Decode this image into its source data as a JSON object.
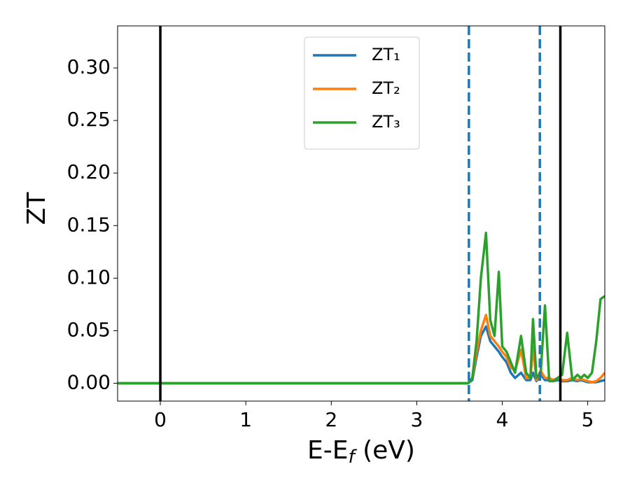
{
  "chart_data": {
    "type": "line",
    "xlabel": [
      "E-E",
      "f",
      " (eV)"
    ],
    "ylabel": "ZT",
    "xlim": [
      -0.5,
      5.2
    ],
    "ylim": [
      -0.017,
      0.34
    ],
    "xticks": [
      0,
      1,
      2,
      3,
      4,
      5
    ],
    "yticks": [
      {
        "value": 0,
        "label": "0.00"
      },
      {
        "value": 0.05,
        "label": "0.05"
      },
      {
        "value": 0.1,
        "label": "0.10"
      },
      {
        "value": 0.15,
        "label": "0.15"
      },
      {
        "value": 0.2,
        "label": "0.20"
      },
      {
        "value": 0.25,
        "label": "0.25"
      },
      {
        "value": 0.3,
        "label": "0.30"
      }
    ],
    "legend_position": "upper center",
    "x": [
      -0.5,
      3.6,
      3.65,
      3.7,
      3.75,
      3.81,
      3.86,
      3.91,
      3.96,
      4.0,
      4.05,
      4.1,
      4.15,
      4.22,
      4.28,
      4.33,
      4.36,
      4.4,
      4.45,
      4.5,
      4.55,
      4.6,
      4.65,
      4.7,
      4.76,
      4.82,
      4.88,
      4.92,
      4.96,
      5.0,
      5.05,
      5.1,
      5.15,
      5.2
    ],
    "series": [
      {
        "name": "ZT₁",
        "color": "#1f77b4",
        "values": [
          0,
          0,
          0.003,
          0.025,
          0.045,
          0.054,
          0.04,
          0.035,
          0.03,
          0.025,
          0.02,
          0.01,
          0.005,
          0.01,
          0.003,
          0.003,
          0.01,
          0.002,
          0.008,
          0.003,
          0.003,
          0.002,
          0.003,
          0.002,
          0.002,
          0.003,
          0.002,
          0.003,
          0.002,
          0.001,
          0.001,
          0.001,
          0.002,
          0.003
        ]
      },
      {
        "name": "ZT₂",
        "color": "#ff7f0e",
        "values": [
          0,
          0,
          0.005,
          0.03,
          0.05,
          0.065,
          0.045,
          0.04,
          0.035,
          0.03,
          0.025,
          0.015,
          0.012,
          0.032,
          0.005,
          0.005,
          0.035,
          0.003,
          0.012,
          0.005,
          0.005,
          0.003,
          0.005,
          0.003,
          0.003,
          0.005,
          0.003,
          0.004,
          0.003,
          0.002,
          0.001,
          0.002,
          0.005,
          0.01
        ]
      },
      {
        "name": "ZT₃",
        "color": "#2ca02c",
        "values": [
          0,
          0,
          0.005,
          0.04,
          0.1,
          0.143,
          0.06,
          0.045,
          0.106,
          0.035,
          0.03,
          0.02,
          0.01,
          0.045,
          0.01,
          0.005,
          0.061,
          0.005,
          0.01,
          0.074,
          0.002,
          0.002,
          0.005,
          0.008,
          0.048,
          0.003,
          0.008,
          0.005,
          0.008,
          0.005,
          0.01,
          0.04,
          0.08,
          0.083
        ]
      }
    ],
    "vlines": [
      {
        "x": 0,
        "color": "#000000",
        "style": "solid"
      },
      {
        "x": 4.68,
        "color": "#000000",
        "style": "solid"
      },
      {
        "x": 3.61,
        "color": "#1f77b4",
        "style": "dashed"
      },
      {
        "x": 4.44,
        "color": "#1f77b4",
        "style": "dashed"
      }
    ]
  }
}
